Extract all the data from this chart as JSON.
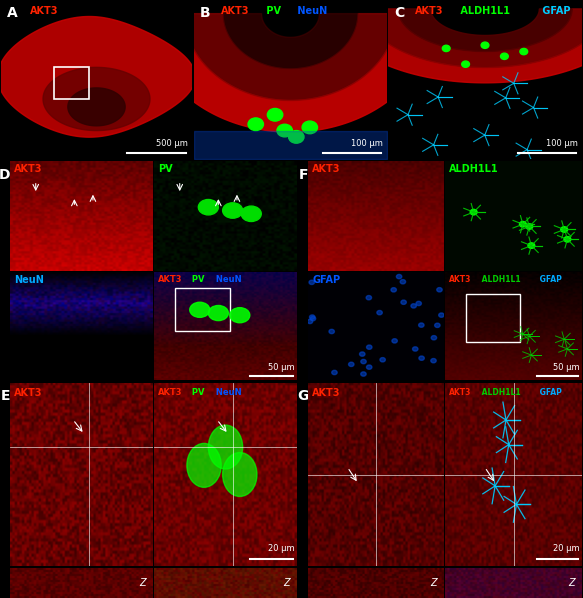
{
  "figure_bg": "#000000",
  "panels": {
    "A": {
      "label": "A",
      "title": "AKT3",
      "title_color": "#ff2200",
      "scale": "500 μm"
    },
    "B": {
      "label": "B",
      "titles": [
        "AKT3",
        "PV",
        "NeuN"
      ],
      "colors": [
        "#ff2200",
        "#00ff00",
        "#0066ff"
      ],
      "scale": "100 μm"
    },
    "C": {
      "label": "C",
      "titles": [
        "AKT3",
        "ALDH1L1",
        "GFAP"
      ],
      "colors": [
        "#ff2200",
        "#00ff00",
        "#00ccff"
      ],
      "scale": "100 μm"
    },
    "D": {
      "label": "D",
      "scale": "50 μm"
    },
    "E": {
      "label": "E",
      "scale": "20 μm"
    },
    "F": {
      "label": "F",
      "scale": "50 μm"
    },
    "G": {
      "label": "G",
      "scale": "20 μm"
    }
  },
  "colors": {
    "red": "#ff2200",
    "green": "#00ff00",
    "blue": "#0055ff",
    "cyan": "#00ccff",
    "green2": "#00cc00",
    "cyan2": "#00aaff",
    "white": "#ffffff"
  }
}
